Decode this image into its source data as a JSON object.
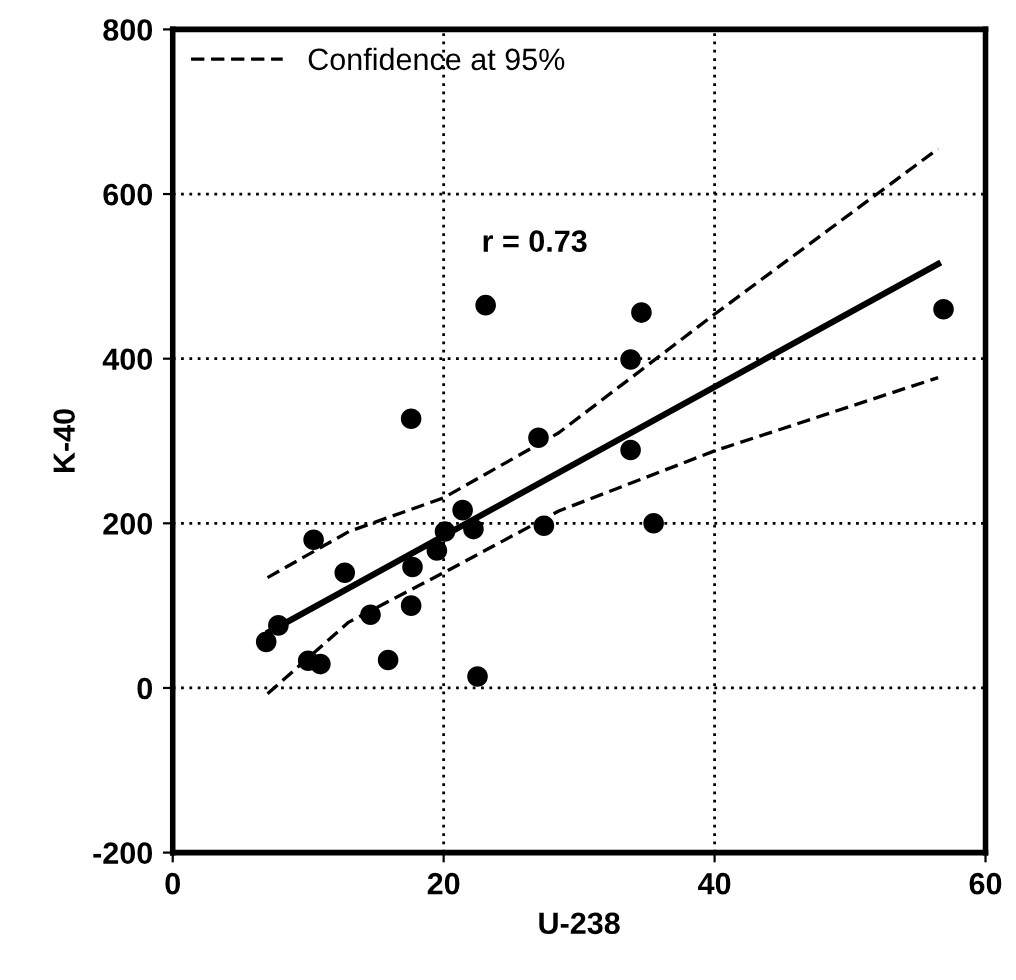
{
  "chart_data": {
    "type": "scatter",
    "xlabel": "U-238",
    "ylabel": "K-40",
    "xlim": [
      0,
      60
    ],
    "xticks": [
      0,
      20,
      40,
      60
    ],
    "ylim": [
      -200,
      800
    ],
    "yticks": [
      -200,
      0,
      200,
      400,
      600,
      800
    ],
    "grid": true,
    "legend": "top left",
    "annotations": [
      "r = 0.73"
    ],
    "series": [
      {
        "color": "#000000",
        "marker": "circle",
        "x": [
          6.9,
          7.8,
          10.4,
          10.0,
          10.9,
          12.7,
          14.6,
          15.9,
          17.6,
          17.7,
          17.6,
          19.5,
          20.1,
          21.4,
          22.2,
          22.5,
          23.1,
          27.0,
          27.4,
          34.6,
          33.8,
          33.8,
          35.5,
          56.9
        ],
        "values": [
          56,
          76,
          180,
          33,
          29,
          140,
          89,
          34,
          327,
          147,
          100,
          167,
          190,
          216,
          193,
          14,
          465,
          304,
          197,
          456,
          399,
          289,
          200,
          460
        ]
      },
      {
        "type": "line",
        "color": "#000000",
        "line_style": "solid",
        "x": [
          7.1,
          56.5
        ],
        "values": [
          68,
          515
        ]
      },
      {
        "type": "line",
        "name": "Confidence at 95%",
        "color": "#000000",
        "line_style": "dashed",
        "x": [
          7,
          13,
          20,
          28.5,
          40,
          56.5
        ],
        "values": [
          134,
          190,
          231,
          310,
          454,
          655
        ]
      },
      {
        "type": "line",
        "color": "#000000",
        "line_style": "dashed",
        "x": [
          7,
          13,
          20,
          28.5,
          40,
          56.5
        ],
        "values": [
          -7,
          80,
          140,
          215,
          288,
          377
        ]
      }
    ]
  }
}
